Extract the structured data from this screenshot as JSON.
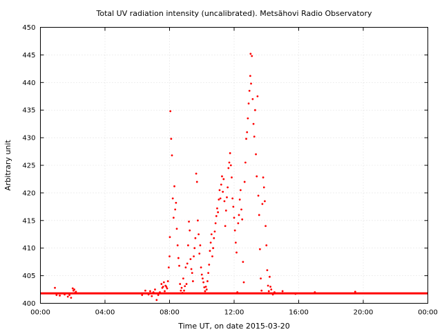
{
  "chart_data": {
    "type": "scatter",
    "title": "Total UV radiation intensity (uncalibrated). Metsähovi Radio Observatory",
    "xlabel": "Time UT, on date 2015-03-20",
    "ylabel": "Arbitrary unit",
    "xlim": [
      0,
      24
    ],
    "ylim": [
      400,
      450
    ],
    "x_unit": "hours UT",
    "x_ticks": [
      0,
      4,
      8,
      12,
      16,
      20,
      24
    ],
    "x_tick_labels": [
      "00:00",
      "04:00",
      "08:00",
      "12:00",
      "16:00",
      "20:00",
      "00:00"
    ],
    "y_ticks": [
      400,
      405,
      410,
      415,
      420,
      425,
      430,
      435,
      440,
      445,
      450
    ],
    "y_tick_labels": [
      "400",
      "405",
      "410",
      "415",
      "420",
      "425",
      "430",
      "435",
      "440",
      "445",
      "450"
    ],
    "grid": true,
    "marker_color": "#ff0000",
    "baseline": 401.8,
    "series": [
      {
        "points": [
          [
            0.9,
            402.8
          ],
          [
            1.0,
            401.5
          ],
          [
            1.2,
            401.4
          ],
          [
            1.5,
            401.6
          ],
          [
            1.7,
            401.2
          ],
          [
            1.8,
            401.5
          ],
          [
            1.9,
            401.0
          ],
          [
            2.0,
            402.7
          ],
          [
            2.05,
            402.3
          ],
          [
            2.1,
            402.5
          ],
          [
            2.15,
            401.9
          ],
          [
            2.2,
            402.1
          ],
          [
            6.3,
            401.5
          ],
          [
            6.5,
            402.3
          ],
          [
            6.7,
            401.6
          ],
          [
            6.8,
            402.2
          ],
          [
            6.9,
            401.3
          ],
          [
            7.0,
            402.0
          ],
          [
            7.1,
            402.5
          ],
          [
            7.2,
            400.6
          ],
          [
            7.3,
            401.5
          ],
          [
            7.4,
            402.0
          ],
          [
            7.5,
            403.5
          ],
          [
            7.55,
            402.8
          ],
          [
            7.6,
            403.0
          ],
          [
            7.65,
            403.8
          ],
          [
            7.7,
            402.2
          ],
          [
            7.75,
            403.2
          ],
          [
            7.8,
            403.0
          ],
          [
            7.85,
            402.7
          ],
          [
            7.9,
            404.0
          ],
          [
            7.95,
            406.5
          ],
          [
            8.0,
            408.5
          ],
          [
            8.02,
            412.0
          ],
          [
            8.05,
            434.8
          ],
          [
            8.1,
            429.8
          ],
          [
            8.15,
            426.8
          ],
          [
            8.2,
            419.0
          ],
          [
            8.25,
            415.5
          ],
          [
            8.3,
            421.2
          ],
          [
            8.35,
            417.0
          ],
          [
            8.4,
            418.2
          ],
          [
            8.45,
            413.5
          ],
          [
            8.5,
            410.5
          ],
          [
            8.55,
            408.2
          ],
          [
            8.6,
            406.8
          ],
          [
            8.65,
            403.5
          ],
          [
            8.7,
            402.3
          ],
          [
            8.75,
            402.8
          ],
          [
            8.8,
            401.9
          ],
          [
            8.85,
            404.5
          ],
          [
            8.9,
            402.3
          ],
          [
            8.95,
            403.1
          ],
          [
            9.0,
            406.5
          ],
          [
            9.05,
            403.5
          ],
          [
            9.1,
            407.2
          ],
          [
            9.15,
            410.5
          ],
          [
            9.2,
            414.8
          ],
          [
            9.25,
            413.2
          ],
          [
            9.3,
            408.0
          ],
          [
            9.35,
            406.2
          ],
          [
            9.4,
            405.5
          ],
          [
            9.45,
            404.0
          ],
          [
            9.5,
            408.5
          ],
          [
            9.55,
            410.0
          ],
          [
            9.6,
            411.8
          ],
          [
            9.65,
            423.5
          ],
          [
            9.7,
            422.0
          ],
          [
            9.75,
            415.0
          ],
          [
            9.8,
            412.5
          ],
          [
            9.85,
            409.0
          ],
          [
            9.9,
            410.5
          ],
          [
            9.95,
            406.5
          ],
          [
            10.0,
            405.2
          ],
          [
            10.05,
            404.5
          ],
          [
            10.1,
            403.8
          ],
          [
            10.15,
            402.9
          ],
          [
            10.2,
            402.2
          ],
          [
            10.25,
            403.0
          ],
          [
            10.3,
            402.5
          ],
          [
            10.35,
            404.0
          ],
          [
            10.4,
            405.5
          ],
          [
            10.45,
            407.0
          ],
          [
            10.5,
            409.5
          ],
          [
            10.55,
            411.0
          ],
          [
            10.6,
            412.5
          ],
          [
            10.65,
            408.5
          ],
          [
            10.7,
            410.0
          ],
          [
            10.75,
            411.8
          ],
          [
            10.8,
            413.0
          ],
          [
            10.85,
            414.5
          ],
          [
            10.9,
            415.8
          ],
          [
            10.95,
            417.2
          ],
          [
            11.0,
            416.5
          ],
          [
            11.05,
            418.8
          ],
          [
            11.1,
            420.5
          ],
          [
            11.15,
            419.0
          ],
          [
            11.2,
            421.5
          ],
          [
            11.25,
            423.0
          ],
          [
            11.3,
            420.2
          ],
          [
            11.35,
            422.5
          ],
          [
            11.4,
            418.5
          ],
          [
            11.45,
            414.0
          ],
          [
            11.5,
            416.8
          ],
          [
            11.55,
            419.2
          ],
          [
            11.6,
            421.0
          ],
          [
            11.65,
            424.5
          ],
          [
            11.7,
            425.5
          ],
          [
            11.75,
            427.2
          ],
          [
            11.8,
            425.0
          ],
          [
            11.85,
            422.8
          ],
          [
            11.9,
            419.0
          ],
          [
            11.95,
            417.5
          ],
          [
            12.0,
            415.5
          ],
          [
            12.05,
            413.2
          ],
          [
            12.1,
            411.0
          ],
          [
            12.15,
            409.2
          ],
          [
            12.2,
            402.0
          ],
          [
            12.25,
            414.5
          ],
          [
            12.3,
            416.0
          ],
          [
            12.35,
            418.8
          ],
          [
            12.4,
            420.5
          ],
          [
            12.45,
            417.0
          ],
          [
            12.5,
            415.2
          ],
          [
            12.55,
            407.5
          ],
          [
            12.6,
            403.8
          ],
          [
            12.65,
            422.0
          ],
          [
            12.7,
            425.5
          ],
          [
            12.75,
            429.8
          ],
          [
            12.8,
            431.0
          ],
          [
            12.85,
            433.5
          ],
          [
            12.9,
            436.2
          ],
          [
            12.95,
            438.5
          ],
          [
            13.0,
            441.2
          ],
          [
            13.02,
            445.2
          ],
          [
            13.05,
            439.8
          ],
          [
            13.1,
            444.8
          ],
          [
            13.15,
            437.0
          ],
          [
            13.2,
            432.5
          ],
          [
            13.25,
            430.2
          ],
          [
            13.3,
            435.0
          ],
          [
            13.35,
            427.0
          ],
          [
            13.4,
            423.0
          ],
          [
            13.45,
            437.5
          ],
          [
            13.5,
            419.5
          ],
          [
            13.55,
            416.0
          ],
          [
            13.6,
            409.8
          ],
          [
            13.65,
            404.5
          ],
          [
            13.7,
            402.3
          ],
          [
            13.75,
            418.0
          ],
          [
            13.8,
            422.8
          ],
          [
            13.85,
            421.0
          ],
          [
            13.9,
            418.5
          ],
          [
            13.95,
            414.0
          ],
          [
            14.0,
            410.5
          ],
          [
            14.05,
            406.0
          ],
          [
            14.1,
            403.2
          ],
          [
            14.15,
            402.2
          ],
          [
            14.2,
            404.8
          ],
          [
            14.25,
            403.0
          ],
          [
            14.3,
            402.5
          ],
          [
            14.4,
            401.6
          ],
          [
            14.5,
            402.0
          ],
          [
            15.0,
            402.2
          ],
          [
            15.8,
            401.7
          ],
          [
            17.0,
            402.0
          ],
          [
            19.5,
            402.1
          ]
        ]
      }
    ]
  }
}
